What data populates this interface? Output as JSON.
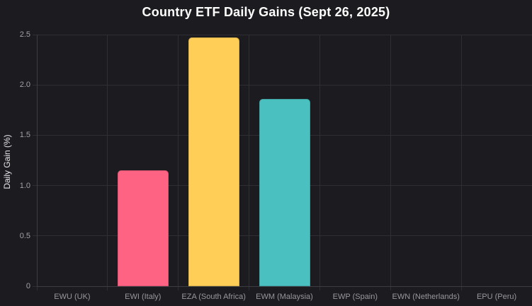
{
  "chart_data": {
    "type": "bar",
    "title": "Country ETF Daily Gains (Sept 26, 2025)",
    "ylabel": "Daily Gain (%)",
    "xlabel": "",
    "categories": [
      "EWU (UK)",
      "EWI (Italy)",
      "EZA (South Africa)",
      "EWM (Malaysia)",
      "EWP (Spain)",
      "EWN (Netherlands)",
      "EPU (Peru)"
    ],
    "values": [
      0,
      1.15,
      2.47,
      1.86,
      0,
      0,
      0
    ],
    "bar_colors": [
      null,
      "#ff6384",
      "#ffce56",
      "#4bc0c0",
      null,
      null,
      null
    ],
    "ylim": [
      0,
      2.5
    ],
    "ytick_labels": [
      "0",
      "0.5",
      "1.0",
      "1.5",
      "2.0",
      "2.5"
    ],
    "grid": true,
    "legend": "none",
    "theme": {
      "background": "#1c1c20",
      "grid_color": "#2e2e34",
      "axis_color": "#3c3c43",
      "ytick_color": "#a2a2a7",
      "xtick_color": "#97979c",
      "title_color": "#ffffff",
      "ylabel_color": "#e6e6e8"
    }
  }
}
